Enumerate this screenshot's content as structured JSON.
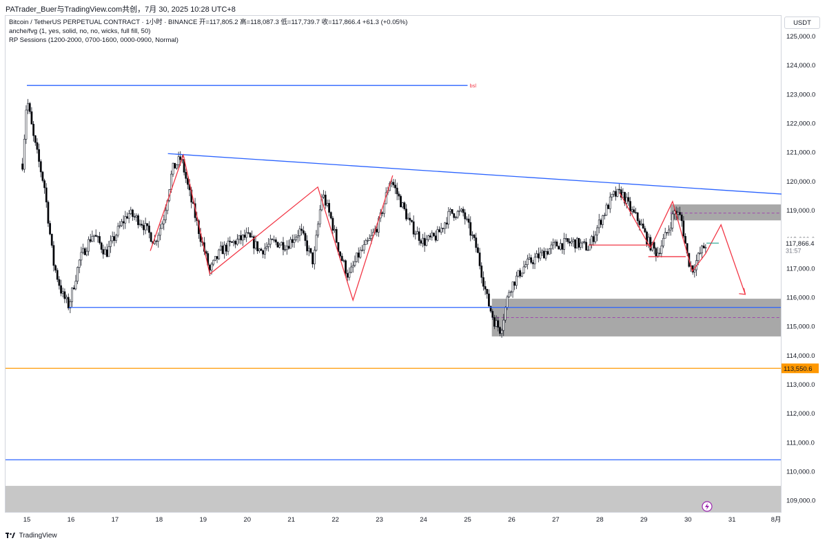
{
  "header": {
    "share_text": "PATrader_Buer与TradingView.com共创，7月 30, 2025 10:28 UTC+8"
  },
  "legend": {
    "symbol_line": "Bitcoin / TetherUS PERPETUAL CONTRACT · 1小时 · BINANCE  开=117,805.2  高=118,087.3  低=117,739.7  收=117,866.4  +61.3 (+0.05%)",
    "indicator1": "anche/fvg (1, yes, solid, no, no, wicks, full fill, 50)",
    "indicator2": "RP Sessions (1200-2000, 0700-1600, 0000-0900, Normal)"
  },
  "currency_button": "USDT",
  "footer": {
    "brand": "TradingView"
  },
  "colors": {
    "up": "#ffffff",
    "down": "#000000",
    "wick": "#131722",
    "blue_line": "#2962ff",
    "red_path": "#f23645",
    "orange_line": "#ff9800",
    "zone_gray": "#9e9e9e",
    "bottom_band": "#c7c7c7",
    "flash_icon": "#9c27b0"
  },
  "chart_data": {
    "type": "candlestick",
    "symbol": "BTCUSDT.P",
    "interval": "1h",
    "ylim": [
      108600,
      125700
    ],
    "x_ticks": [
      {
        "label": "15",
        "day": 15
      },
      {
        "label": "16",
        "day": 16
      },
      {
        "label": "17",
        "day": 17
      },
      {
        "label": "18",
        "day": 18
      },
      {
        "label": "19",
        "day": 19
      },
      {
        "label": "20",
        "day": 20
      },
      {
        "label": "21",
        "day": 21
      },
      {
        "label": "22",
        "day": 22
      },
      {
        "label": "23",
        "day": 23
      },
      {
        "label": "24",
        "day": 24
      },
      {
        "label": "25",
        "day": 25
      },
      {
        "label": "26",
        "day": 26
      },
      {
        "label": "27",
        "day": 27
      },
      {
        "label": "28",
        "day": 28
      },
      {
        "label": "29",
        "day": 29
      },
      {
        "label": "30",
        "day": 30
      },
      {
        "label": "31",
        "day": 31
      },
      {
        "label": "8月",
        "day": 32
      }
    ],
    "y_ticks": [
      {
        "label": "125,000.0",
        "value": 125000
      },
      {
        "label": "124,000.0",
        "value": 124000
      },
      {
        "label": "123,000.0",
        "value": 123000
      },
      {
        "label": "122,000.0",
        "value": 122000
      },
      {
        "label": "121,000.0",
        "value": 121000
      },
      {
        "label": "120,000.0",
        "value": 120000
      },
      {
        "label": "119,000.0",
        "value": 119000
      },
      {
        "label": "118,000.0",
        "value": 118000
      },
      {
        "label": "117,000.0",
        "value": 117000
      },
      {
        "label": "116,000.0",
        "value": 116000
      },
      {
        "label": "115,000.0",
        "value": 115000
      },
      {
        "label": "114,000.0",
        "value": 114000
      },
      {
        "label": "113,000.0",
        "value": 113000
      },
      {
        "label": "112,000.0",
        "value": 112000
      },
      {
        "label": "111,000.0",
        "value": 111000
      },
      {
        "label": "110,000.0",
        "value": 110000
      },
      {
        "label": "109,000.0",
        "value": 109000
      }
    ],
    "last_price": {
      "value": 117866.4,
      "label": "117,866.4",
      "countdown": "31:57"
    },
    "orange_level": {
      "value": 113550.6,
      "label": "113,550.6"
    },
    "price_path": [
      [
        14.9,
        120600
      ],
      [
        15.0,
        122900
      ],
      [
        15.15,
        121500
      ],
      [
        15.4,
        119800
      ],
      [
        15.6,
        117200
      ],
      [
        15.8,
        116100
      ],
      [
        15.95,
        115700
      ],
      [
        16.2,
        117300
      ],
      [
        16.5,
        118200
      ],
      [
        16.8,
        117500
      ],
      [
        17.1,
        118400
      ],
      [
        17.3,
        118900
      ],
      [
        17.6,
        118600
      ],
      [
        17.9,
        117900
      ],
      [
        18.1,
        118700
      ],
      [
        18.3,
        120400
      ],
      [
        18.5,
        120800
      ],
      [
        18.7,
        119500
      ],
      [
        18.9,
        118300
      ],
      [
        19.15,
        116900
      ],
      [
        19.4,
        117600
      ],
      [
        19.7,
        117900
      ],
      [
        20.0,
        118100
      ],
      [
        20.3,
        117600
      ],
      [
        20.6,
        117900
      ],
      [
        20.9,
        117800
      ],
      [
        21.2,
        118300
      ],
      [
        21.5,
        117200
      ],
      [
        21.7,
        119600
      ],
      [
        21.9,
        118700
      ],
      [
        22.1,
        117500
      ],
      [
        22.3,
        116700
      ],
      [
        22.5,
        117400
      ],
      [
        22.8,
        118000
      ],
      [
        23.0,
        118600
      ],
      [
        23.25,
        120100
      ],
      [
        23.45,
        119400
      ],
      [
        23.7,
        118500
      ],
      [
        24.0,
        117900
      ],
      [
        24.3,
        118100
      ],
      [
        24.6,
        118900
      ],
      [
        24.9,
        118900
      ],
      [
        25.2,
        117700
      ],
      [
        25.45,
        115900
      ],
      [
        25.6,
        115200
      ],
      [
        25.75,
        114850
      ],
      [
        25.95,
        116300
      ],
      [
        26.3,
        117100
      ],
      [
        26.6,
        117400
      ],
      [
        27.0,
        117800
      ],
      [
        27.4,
        117900
      ],
      [
        27.75,
        117700
      ],
      [
        28.0,
        118600
      ],
      [
        28.3,
        119500
      ],
      [
        28.5,
        119600
      ],
      [
        28.7,
        119000
      ],
      [
        28.9,
        118600
      ],
      [
        29.1,
        117900
      ],
      [
        29.3,
        117500
      ],
      [
        29.55,
        118300
      ],
      [
        29.7,
        119000
      ],
      [
        29.85,
        118700
      ],
      [
        30.0,
        117300
      ],
      [
        30.1,
        116950
      ],
      [
        30.3,
        117600
      ],
      [
        30.42,
        117866
      ]
    ],
    "overlays": {
      "bsl_label": "bsl",
      "bsl_line": {
        "price": 123300,
        "from_day": 15.0,
        "to_day": 25.0
      },
      "trend_line": {
        "from": [
          18.2,
          120950
        ],
        "to": [
          32.2,
          119550
        ]
      },
      "support_line": {
        "price": 115650,
        "from_day": 15.95
      },
      "lower_blue_line": {
        "price": 110400
      },
      "zones": [
        {
          "from_day": 29.6,
          "price_top": 119200,
          "price_bottom": 118650,
          "mid": 118900
        },
        {
          "from_day": 25.55,
          "price_top": 115950,
          "price_bottom": 114650,
          "mid": 115300
        }
      ],
      "bottom_band": {
        "price_top": 109500
      },
      "red_zigzag": [
        [
          17.8,
          117600
        ],
        [
          18.55,
          120900
        ],
        [
          19.15,
          116800
        ],
        [
          21.6,
          119800
        ],
        [
          22.4,
          115900
        ],
        [
          23.3,
          120200
        ]
      ],
      "red_right_pattern": [
        [
          28.45,
          119600
        ],
        [
          29.15,
          117700
        ],
        [
          29.65,
          119300
        ],
        [
          30.1,
          116900
        ],
        [
          30.4,
          117500
        ],
        [
          30.75,
          118500
        ],
        [
          31.3,
          116100
        ]
      ],
      "neck_lines": [
        {
          "price": 117800,
          "from_day": 27.75,
          "to_day": 29.15
        },
        {
          "price": 117400,
          "from_day": 29.1,
          "to_day": 29.95
        }
      ]
    }
  }
}
